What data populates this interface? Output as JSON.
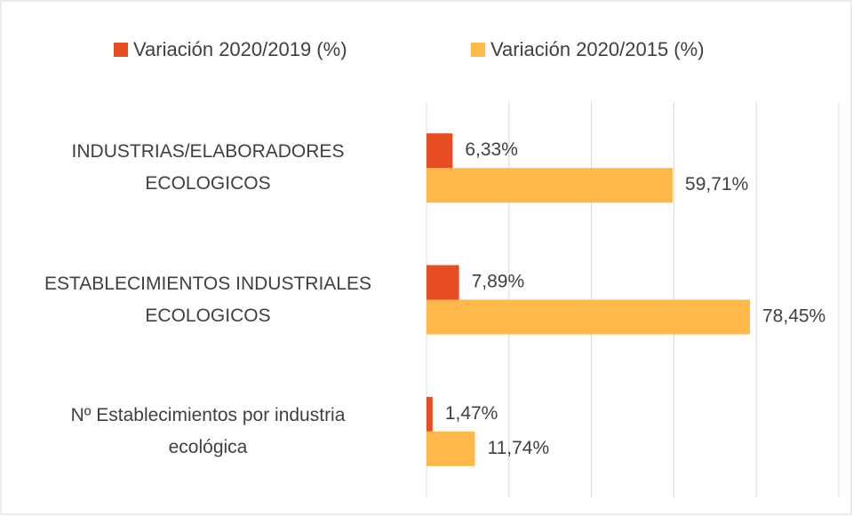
{
  "chart_data": {
    "type": "hbar",
    "categories": [
      "INDUSTRIAS/ELABORADORES\nECOLOGICOS",
      "ESTABLECIMIENTOS  INDUSTRIALES\nECOLOGICOS",
      "Nº Establecimientos por industria\necológica"
    ],
    "series": [
      {
        "name": "Variación 2020/2019 (%)",
        "color": "#e84c22",
        "values": [
          6.33,
          7.89,
          1.47
        ],
        "value_labels": [
          "6,33%",
          "7,89%",
          "1,47%"
        ]
      },
      {
        "name": "Variación 2020/2015 (%)",
        "color": "#ffb94a",
        "values": [
          59.71,
          78.45,
          11.74
        ],
        "value_labels": [
          "59,71%",
          "78,45%",
          "11,74%"
        ]
      }
    ],
    "xlim": [
      0,
      100
    ],
    "xticks": [
      0,
      20,
      40,
      60,
      80,
      100
    ],
    "grid": true,
    "legend": "top"
  }
}
